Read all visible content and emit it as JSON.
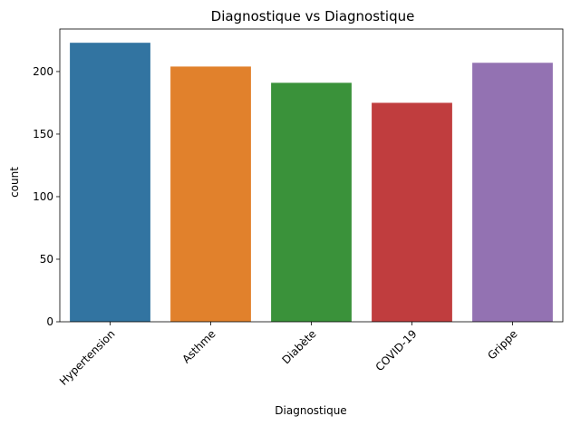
{
  "chart_data": {
    "type": "bar",
    "title": "Diagnostique vs Diagnostique",
    "xlabel": "Diagnostique",
    "ylabel": "count",
    "categories": [
      "Hypertension",
      "Asthme",
      "Diabète",
      "COVID-19",
      "Grippe"
    ],
    "values": [
      223,
      204,
      191,
      175,
      207
    ],
    "colors": [
      "#3274a1",
      "#e1812c",
      "#3a923a",
      "#c03d3e",
      "#9372b2"
    ],
    "ylim": [
      0,
      234
    ],
    "yticks": [
      0,
      50,
      100,
      150,
      200
    ],
    "grid": false
  }
}
